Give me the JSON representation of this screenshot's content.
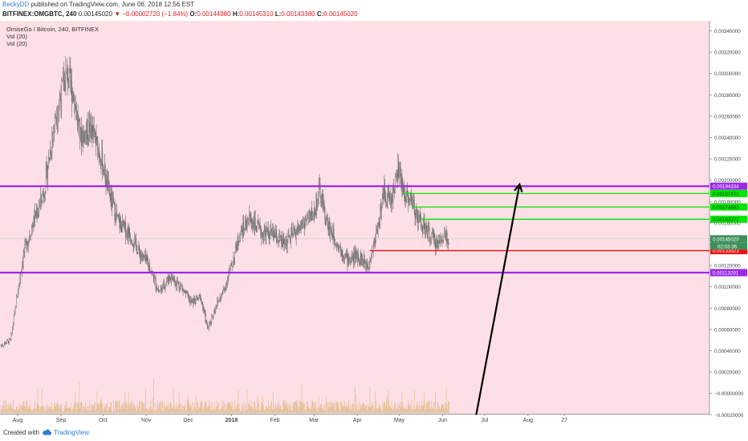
{
  "header": {
    "author": "BeckyDD",
    "published": " published on TradingView.com, June 06, 2018 12:56 EST",
    "symbol": "BITFINEX:OMGBTC, 240",
    "last": "0.00145020",
    "change_arrow": "▼",
    "change": "−0.00002720 (−1.84%)",
    "o_label": "O:",
    "o": "0.00144980",
    "h_label": "H:",
    "h": "0.00145310",
    "l_label": "L:",
    "l": "0.00143380",
    "c_label": "C:",
    "c": "0.00145020"
  },
  "legend": {
    "title": "OmiseGo / Bitcoin, 240, BITFINEX",
    "vol1": "Vol (20)",
    "vol2": "Vol (20)"
  },
  "footer": {
    "created": "Created with",
    "brand": "TradingView",
    "logo_icon": "tradingview-cloud-icon"
  },
  "colors": {
    "background": "#fde0e6",
    "purple": "#9c27e8",
    "green": "#00e600",
    "red": "#ee1111",
    "arrow": "#000000",
    "candle": "#6a6a6a",
    "volume": "#c8a24a"
  },
  "chart_data": {
    "type": "candlestick",
    "title": "OmiseGo / Bitcoin, 240, BITFINEX",
    "x_ticks": [
      "Aug",
      "Sep",
      "Oct",
      "Nov",
      "Dec",
      "2018",
      "Feb",
      "Mar",
      "Apr",
      "May",
      "Jun",
      "Jul",
      "Aug",
      "27"
    ],
    "y_ticks": [
      "0.00340000",
      "0.00320000",
      "0.00300000",
      "0.00280000",
      "0.00260000",
      "0.00240000",
      "0.00220000",
      "0.00200000",
      "0.00180000",
      "0.00160000",
      "0.00140000",
      "0.00120000",
      "0.00100000",
      "0.00080000",
      "0.00060000",
      "0.00040000",
      "0.00020000",
      "−0.00000000",
      "−0.00020000"
    ],
    "y_tick_values": [
      0.0034,
      0.0032,
      0.003,
      0.0028,
      0.0026,
      0.0024,
      0.0022,
      0.002,
      0.0018,
      0.0016,
      0.0014,
      0.0012,
      0.001,
      0.0008,
      0.0006,
      0.0004,
      0.0002,
      0.0,
      -0.0002
    ],
    "ylim": [
      -0.0002,
      0.0035
    ],
    "approx_close_path": [
      [
        "2017-07-20",
        0.00045
      ],
      [
        "2017-07-27",
        0.0005
      ],
      [
        "2017-08-05",
        0.0013
      ],
      [
        "2017-08-12",
        0.0016
      ],
      [
        "2017-08-20",
        0.0019
      ],
      [
        "2017-08-28",
        0.0026
      ],
      [
        "2017-09-05",
        0.003
      ],
      [
        "2017-09-10",
        0.0028
      ],
      [
        "2017-09-15",
        0.0024
      ],
      [
        "2017-09-22",
        0.0025
      ],
      [
        "2017-09-30",
        0.0022
      ],
      [
        "2017-10-05",
        0.0019
      ],
      [
        "2017-10-12",
        0.0016
      ],
      [
        "2017-10-20",
        0.0015
      ],
      [
        "2017-10-28",
        0.0013
      ],
      [
        "2017-11-03",
        0.0012
      ],
      [
        "2017-11-10",
        0.00095
      ],
      [
        "2017-11-18",
        0.0011
      ],
      [
        "2017-11-26",
        0.001
      ],
      [
        "2017-12-03",
        0.00085
      ],
      [
        "2017-12-10",
        0.0009
      ],
      [
        "2017-12-15",
        0.0006
      ],
      [
        "2017-12-20",
        0.0008
      ],
      [
        "2017-12-26",
        0.00095
      ],
      [
        "2018-01-01",
        0.0012
      ],
      [
        "2018-01-07",
        0.0015
      ],
      [
        "2018-01-14",
        0.00165
      ],
      [
        "2018-01-22",
        0.0015
      ],
      [
        "2018-01-30",
        0.0015
      ],
      [
        "2018-02-07",
        0.0014
      ],
      [
        "2018-02-15",
        0.0015
      ],
      [
        "2018-02-22",
        0.0016
      ],
      [
        "2018-03-01",
        0.0017
      ],
      [
        "2018-03-05",
        0.0019
      ],
      [
        "2018-03-10",
        0.0016
      ],
      [
        "2018-03-18",
        0.0014
      ],
      [
        "2018-03-25",
        0.00125
      ],
      [
        "2018-04-01",
        0.0013
      ],
      [
        "2018-04-08",
        0.0012
      ],
      [
        "2018-04-12",
        0.00135
      ],
      [
        "2018-04-16",
        0.0016
      ],
      [
        "2018-04-20",
        0.0019
      ],
      [
        "2018-04-25",
        0.0018
      ],
      [
        "2018-04-30",
        0.0021
      ],
      [
        "2018-05-04",
        0.0019
      ],
      [
        "2018-05-10",
        0.0018
      ],
      [
        "2018-05-16",
        0.0016
      ],
      [
        "2018-05-22",
        0.0015
      ],
      [
        "2018-05-28",
        0.0014
      ],
      [
        "2018-06-03",
        0.0015
      ],
      [
        "2018-06-06",
        0.00145
      ]
    ],
    "horizontal_lines": [
      {
        "value": 0.00194334,
        "label": "0.00194334",
        "color": "purple"
      },
      {
        "value": 0.00113291,
        "label": "0.00113291",
        "color": "purple"
      }
    ],
    "target_levels": [
      {
        "value": 0.00187471,
        "label": "0.00187471",
        "color": "green"
      },
      {
        "value": 0.00174883,
        "label": "0.00174883",
        "color": "green"
      },
      {
        "value": 0.00163371,
        "label": "0.00163371",
        "color": "green"
      },
      {
        "value": 0.00133923,
        "label": "0.00133923",
        "color": "red"
      }
    ],
    "last_price": {
      "value": 0.0014502,
      "label": "0.00145020",
      "countdown": "02:03:36"
    },
    "arrow": {
      "from": [
        "2018-06-25",
        -0.0002
      ],
      "to": [
        "2018-07-26",
        0.00196
      ]
    },
    "grid": false
  }
}
